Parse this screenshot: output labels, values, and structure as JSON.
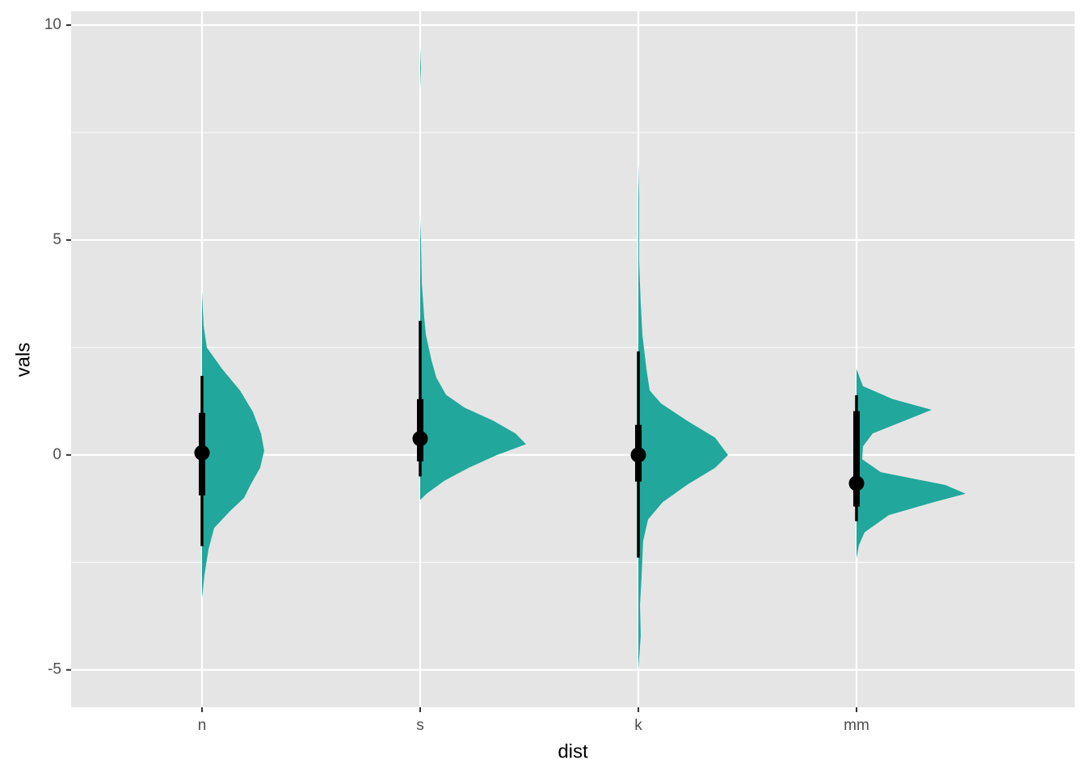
{
  "chart_data": {
    "type": "halfeye",
    "x_label": "dist",
    "y_label": "vals",
    "categories": [
      "n",
      "s",
      "k",
      "mm"
    ],
    "color": "#21a79b",
    "ylim": [
      -5.87,
      10.32
    ],
    "yticks": [
      -5,
      0,
      5,
      10
    ],
    "minor_yticks": [
      -2.5,
      2.5,
      7.5
    ],
    "grid": true,
    "series": [
      {
        "median": 0.05,
        "interval_66": [
          -0.94,
          0.98
        ],
        "interval_95": [
          -2.12,
          1.84
        ],
        "slab": {
          "y": [
            3.8,
            3.0,
            2.5,
            2.0,
            1.5,
            1.0,
            0.5,
            0.1,
            -0.3,
            -0.7,
            -1.0,
            -1.3,
            -1.7,
            -2.2,
            -2.8,
            -3.33
          ],
          "thickness": [
            0,
            0.015,
            0.044,
            0.185,
            0.348,
            0.467,
            0.541,
            0.57,
            0.533,
            0.444,
            0.385,
            0.259,
            0.111,
            0.059,
            0.022,
            0
          ]
        }
      },
      {
        "median": 0.38,
        "interval_66": [
          -0.15,
          1.3
        ],
        "interval_95": [
          -0.5,
          3.12
        ],
        "slab": {
          "y": [
            9.5,
            9.0,
            8.5,
            5.5,
            5.0,
            4.0,
            3.2,
            2.8,
            2.2,
            1.8,
            1.4,
            1.1,
            0.8,
            0.5,
            0.25,
            0.0,
            -0.3,
            -0.6,
            -0.9,
            -1.05
          ],
          "thickness": [
            0,
            0.007,
            0,
            0,
            0.007,
            0.015,
            0.037,
            0.052,
            0.104,
            0.148,
            0.237,
            0.407,
            0.667,
            0.874,
            0.97,
            0.704,
            0.444,
            0.222,
            0.059,
            0
          ]
        }
      },
      {
        "median": 0.0,
        "interval_66": [
          -0.62,
          0.7
        ],
        "interval_95": [
          -2.39,
          2.41
        ],
        "slab": {
          "y": [
            6.8,
            6.0,
            4.5,
            3.5,
            2.8,
            2.0,
            1.5,
            1.2,
            0.8,
            0.4,
            0.0,
            -0.3,
            -0.7,
            -1.1,
            -1.5,
            -2.0,
            -2.8,
            -3.5,
            -4.2,
            -5.0
          ],
          "thickness": [
            0,
            0.007,
            0.007,
            0.022,
            0.037,
            0.074,
            0.104,
            0.207,
            0.444,
            0.704,
            0.822,
            0.704,
            0.444,
            0.222,
            0.089,
            0.044,
            0.03,
            0.015,
            0.022,
            0
          ]
        }
      },
      {
        "median": -0.66,
        "interval_66": [
          -1.2,
          1.02
        ],
        "interval_95": [
          -1.54,
          1.39
        ],
        "slab": {
          "y": [
            2.0,
            1.6,
            1.3,
            1.05,
            0.8,
            0.5,
            0.2,
            -0.1,
            -0.4,
            -0.7,
            -0.9,
            -1.1,
            -1.4,
            -1.8,
            -2.1,
            -2.4
          ],
          "thickness": [
            0,
            0.059,
            0.333,
            0.689,
            0.444,
            0.148,
            0.059,
            0.052,
            0.222,
            0.815,
            1.0,
            0.704,
            0.296,
            0.074,
            0.022,
            0
          ]
        }
      }
    ]
  }
}
